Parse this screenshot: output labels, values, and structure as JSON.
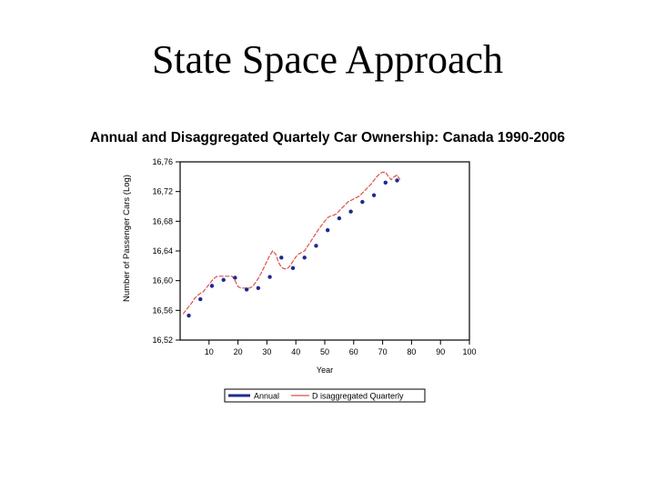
{
  "slide": {
    "title": "State Space Approach"
  },
  "colors": {
    "annual": "#1f2a8f",
    "quarterly": "#d9534f",
    "axis": "#000000"
  },
  "chart_data": {
    "type": "line",
    "title": "Annual and Disaggregated Quartely Car Ownership: Canada 1990-2006",
    "xlabel": "Year",
    "ylabel": "Number of Passenger Cars (Log)",
    "xlim": [
      0,
      100
    ],
    "ylim": [
      16.52,
      16.76
    ],
    "xticks": [
      10,
      20,
      30,
      40,
      50,
      60,
      70,
      80,
      90,
      100
    ],
    "xtick_labels": [
      "10",
      "20",
      "30",
      "40",
      "50",
      "60",
      "70",
      "80",
      "90",
      "100"
    ],
    "yticks": [
      16.52,
      16.56,
      16.6,
      16.64,
      16.68,
      16.72,
      16.76
    ],
    "ytick_labels": [
      "16,52",
      "16,56",
      "16,60",
      "16,64",
      "16,68",
      "16,72",
      "16,76"
    ],
    "grid": false,
    "legend_position": "bottom",
    "series": [
      {
        "name": "Annual",
        "style": "dots",
        "x": [
          3,
          7,
          11,
          15,
          19,
          23,
          27,
          31,
          35,
          39,
          43,
          47,
          51,
          55,
          59,
          63,
          67,
          71,
          75
        ],
        "y": [
          16.553,
          16.575,
          16.593,
          16.601,
          16.604,
          16.588,
          16.59,
          16.605,
          16.631,
          16.617,
          16.631,
          16.647,
          16.668,
          16.684,
          16.693,
          16.706,
          16.715,
          16.732,
          16.735
        ]
      },
      {
        "name": "D isaggregated Quarterly",
        "style": "dashed",
        "x": [
          1,
          2,
          3,
          4,
          5,
          6,
          7,
          8,
          9,
          10,
          11,
          12,
          13,
          14,
          15,
          16,
          17,
          18,
          19,
          20,
          21,
          22,
          23,
          24,
          25,
          26,
          27,
          28,
          29,
          30,
          31,
          32,
          33,
          34,
          35,
          36,
          37,
          38,
          39,
          40,
          41,
          42,
          43,
          44,
          45,
          46,
          47,
          48,
          49,
          50,
          51,
          52,
          53,
          54,
          55,
          56,
          57,
          58,
          59,
          60,
          61,
          62,
          63,
          64,
          65,
          66,
          67,
          68,
          69,
          70,
          71,
          72,
          73,
          74,
          75,
          76
        ],
        "y": [
          16.555,
          16.56,
          16.565,
          16.57,
          16.576,
          16.58,
          16.583,
          16.585,
          16.59,
          16.595,
          16.6,
          16.604,
          16.606,
          16.606,
          16.606,
          16.606,
          16.606,
          16.606,
          16.6,
          16.592,
          16.59,
          16.59,
          16.59,
          16.59,
          16.592,
          16.597,
          16.603,
          16.61,
          16.618,
          16.626,
          16.634,
          16.64,
          16.636,
          16.625,
          16.618,
          16.616,
          16.616,
          16.62,
          16.626,
          16.632,
          16.636,
          16.638,
          16.64,
          16.646,
          16.652,
          16.658,
          16.664,
          16.67,
          16.675,
          16.68,
          16.685,
          16.687,
          16.688,
          16.69,
          16.694,
          16.698,
          16.702,
          16.706,
          16.708,
          16.71,
          16.712,
          16.714,
          16.718,
          16.722,
          16.726,
          16.73,
          16.735,
          16.74,
          16.744,
          16.746,
          16.746,
          16.74,
          16.736,
          16.74,
          16.742,
          16.736
        ]
      }
    ]
  }
}
